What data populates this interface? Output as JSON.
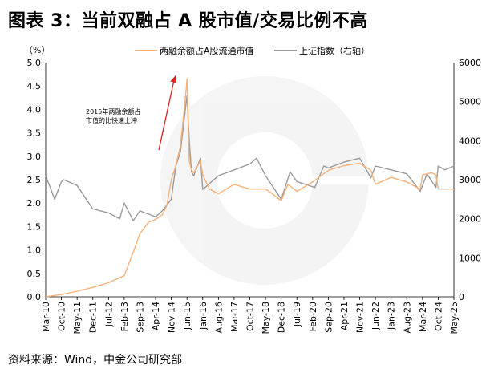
{
  "title": "图表 3：当前双融占 A 股市值/交易比例不高",
  "source": "资料来源：Wind，中金公司研究部",
  "chart_data": {
    "type": "line",
    "left_axis_unit": "（%）",
    "left_ylim": [
      0,
      5
    ],
    "left_ticks": [
      "0.0",
      "0.5",
      "1.0",
      "1.5",
      "2.0",
      "2.5",
      "3.0",
      "3.5",
      "4.0",
      "4.5",
      "5.0"
    ],
    "right_ylim": [
      0,
      6000
    ],
    "right_ticks": [
      "0",
      "1000",
      "2000",
      "3000",
      "4000",
      "5000",
      "6000"
    ],
    "x_ticks": [
      "Mar-10",
      "Oct-10",
      "May-11",
      "Dec-11",
      "Jul-12",
      "Feb-13",
      "Sep-13",
      "Apr-14",
      "Nov-14",
      "Jun-15",
      "Jan-16",
      "Aug-16",
      "Mar-17",
      "Oct-17",
      "May-18",
      "Dec-18",
      "Jul-19",
      "Feb-20",
      "Sep-20",
      "Apr-21",
      "Nov-21",
      "Jun-22",
      "Jan-23",
      "Aug-23",
      "Mar-24",
      "Oct-24",
      "May-25"
    ],
    "legend_position": "top",
    "annotation": {
      "lines": [
        "2015年两融余额占",
        "市值的比快速上冲"
      ]
    },
    "series": [
      {
        "name": "两融余额占A股流通市值",
        "axis": "left",
        "color": "#F5B27A",
        "x": [
          "2010-03",
          "2010-10",
          "2011-05",
          "2011-12",
          "2012-07",
          "2013-02",
          "2013-06",
          "2013-09",
          "2014-01",
          "2014-04",
          "2014-07",
          "2014-09",
          "2014-11",
          "2015-01",
          "2015-03",
          "2015-05",
          "2015-06",
          "2015-07",
          "2015-08",
          "2015-09",
          "2015-12",
          "2016-01",
          "2016-04",
          "2016-08",
          "2017-03",
          "2017-10",
          "2018-05",
          "2018-08",
          "2018-12",
          "2019-03",
          "2019-07",
          "2020-02",
          "2020-09",
          "2021-04",
          "2021-11",
          "2022-04",
          "2022-06",
          "2023-01",
          "2023-08",
          "2024-02",
          "2024-03",
          "2024-07",
          "2024-09",
          "2024-10",
          "2025-01",
          "2025-05"
        ],
        "values": [
          0.0,
          0.05,
          0.12,
          0.2,
          0.3,
          0.45,
          0.95,
          1.35,
          1.6,
          1.65,
          1.75,
          1.95,
          2.5,
          2.8,
          3.2,
          4.1,
          4.65,
          2.9,
          2.7,
          2.65,
          2.9,
          2.6,
          2.3,
          2.2,
          2.4,
          2.3,
          2.3,
          2.2,
          2.05,
          2.4,
          2.25,
          2.45,
          2.7,
          2.8,
          2.85,
          2.7,
          2.4,
          2.55,
          2.45,
          2.3,
          2.6,
          2.65,
          2.6,
          2.3,
          2.3,
          2.3
        ]
      },
      {
        "name": "上证指数（右轴）",
        "axis": "right",
        "color": "#9A9A9A",
        "x": [
          "2010-03",
          "2010-07",
          "2010-10",
          "2010-11",
          "2011-05",
          "2011-12",
          "2012-07",
          "2012-12",
          "2013-02",
          "2013-06",
          "2013-09",
          "2014-04",
          "2014-07",
          "2014-11",
          "2015-01",
          "2015-03",
          "2015-06",
          "2015-07",
          "2015-08",
          "2015-09",
          "2015-12",
          "2016-01",
          "2016-08",
          "2017-03",
          "2017-10",
          "2018-01",
          "2018-05",
          "2018-12",
          "2019-04",
          "2019-07",
          "2020-03",
          "2020-07",
          "2020-09",
          "2021-04",
          "2021-11",
          "2022-04",
          "2022-06",
          "2023-01",
          "2023-08",
          "2024-02",
          "2024-05",
          "2024-09",
          "2024-10",
          "2025-01",
          "2025-05"
        ],
        "values": [
          3100,
          2500,
          2950,
          3000,
          2850,
          2250,
          2150,
          2000,
          2400,
          1950,
          2200,
          2050,
          2200,
          2500,
          3350,
          3700,
          5150,
          4000,
          3200,
          3100,
          3550,
          2750,
          3100,
          3250,
          3400,
          3550,
          3100,
          2500,
          3200,
          2950,
          2800,
          3350,
          3300,
          3450,
          3550,
          3050,
          3350,
          3250,
          3150,
          2700,
          3150,
          2800,
          3350,
          3250,
          3350
        ]
      }
    ]
  }
}
